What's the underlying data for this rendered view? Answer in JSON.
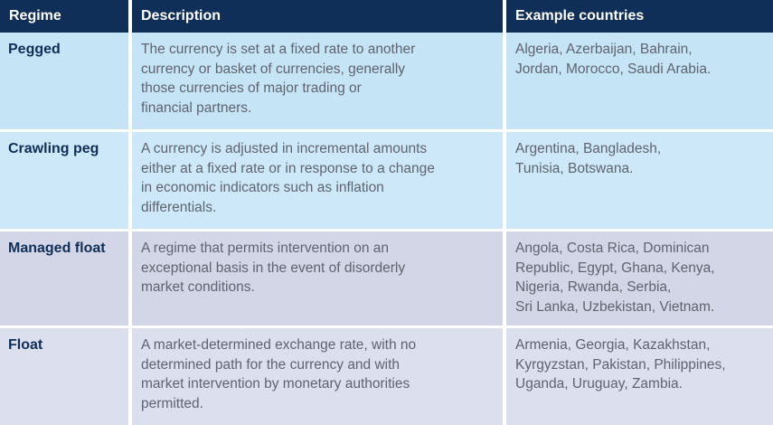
{
  "headers": {
    "regime": "Regime",
    "description": "Description",
    "countries": "Example countries"
  },
  "rows": [
    {
      "regime": "Pegged",
      "description": "The currency is set at a fixed rate to another\ncurrency or basket of currencies, generally\nthose currencies of major trading or\nfinancial partners.",
      "countries": "Algeria, Azerbaijan, Bahrain,\nJordan, Morocco, Saudi Arabia."
    },
    {
      "regime": "Crawling peg",
      "description": "A currency is adjusted in incremental amounts\neither at a fixed rate or in response to a change\nin economic indicators such as inflation\ndifferentials.",
      "countries": "Argentina, Bangladesh,\nTunisia, Botswana."
    },
    {
      "regime": "Managed float",
      "description": "A regime that permits intervention on an\nexceptional basis in the event of disorderly\nmarket conditions.",
      "countries": "Angola, Costa Rica, Dominican\nRepublic, Egypt, Ghana, Kenya,\nNigeria, Rwanda, Serbia,\nSri Lanka, Uzbekistan, Vietnam."
    },
    {
      "regime": "Float",
      "description": "A market-determined exchange rate, with no\ndetermined path for the currency and with\nmarket intervention by monetary authorities\npermitted.",
      "countries": "Armenia, Georgia, Kazakhstan,\nKyrgyzstan, Pakistan, Philippines,\nUganda, Uruguay, Zambia."
    }
  ]
}
